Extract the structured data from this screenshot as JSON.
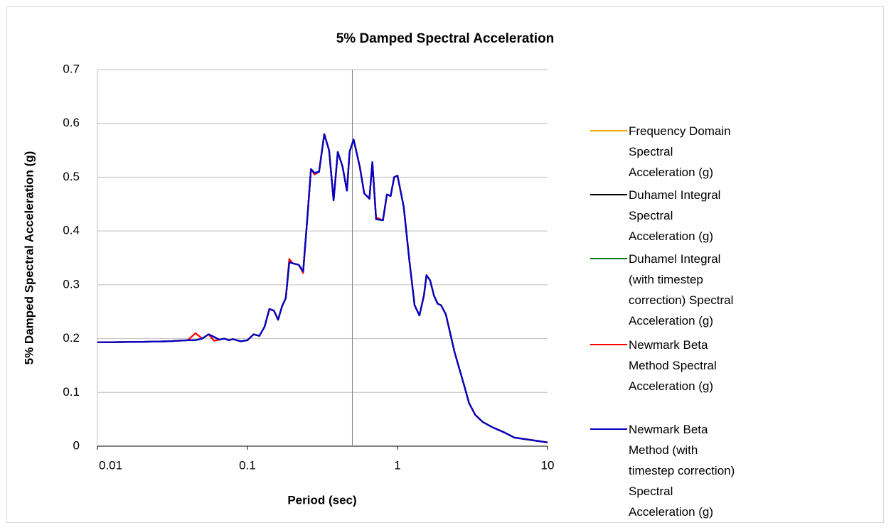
{
  "chart_data": {
    "type": "line",
    "title": "5% Damped Spectral Acceleration",
    "x_label": "Period (sec)",
    "y_label": "5% Damped Spectral Acceleration (g)",
    "xscale": "log",
    "xlim": [
      0.01,
      10
    ],
    "xticks": [
      0.01,
      0.1,
      1,
      10
    ],
    "ylim": [
      0,
      0.7
    ],
    "yticks": [
      0,
      0.1,
      0.2,
      0.3,
      0.4,
      0.5,
      0.6,
      0.7
    ],
    "grid": true,
    "vline": 0.5,
    "legend": "right",
    "x": [
      0.01,
      0.02,
      0.03,
      0.04,
      0.045,
      0.05,
      0.055,
      0.06,
      0.065,
      0.07,
      0.075,
      0.08,
      0.09,
      0.1,
      0.11,
      0.12,
      0.13,
      0.14,
      0.15,
      0.16,
      0.17,
      0.18,
      0.19,
      0.2,
      0.22,
      0.235,
      0.25,
      0.265,
      0.28,
      0.3,
      0.325,
      0.35,
      0.375,
      0.4,
      0.43,
      0.46,
      0.48,
      0.51,
      0.56,
      0.6,
      0.65,
      0.68,
      0.72,
      0.8,
      0.85,
      0.9,
      0.95,
      1,
      1.1,
      1.2,
      1.3,
      1.4,
      1.5,
      1.56,
      1.65,
      1.75,
      1.85,
      1.95,
      2.1,
      2.4,
      2.8,
      3,
      3.3,
      3.7,
      4.3,
      5.2,
      6,
      7.5,
      10
    ],
    "series": [
      {
        "name": "Frequency Domain Spectral Acceleration (g)",
        "color": "#ffa500",
        "values": [
          0.193,
          0.194,
          0.195,
          0.197,
          0.197,
          0.2,
          0.208,
          0.203,
          0.198,
          0.2,
          0.197,
          0.199,
          0.195,
          0.197,
          0.208,
          0.205,
          0.222,
          0.255,
          0.252,
          0.235,
          0.26,
          0.275,
          0.342,
          0.34,
          0.337,
          0.325,
          0.42,
          0.515,
          0.508,
          0.51,
          0.58,
          0.55,
          0.457,
          0.547,
          0.52,
          0.475,
          0.548,
          0.57,
          0.52,
          0.47,
          0.46,
          0.528,
          0.422,
          0.42,
          0.468,
          0.465,
          0.5,
          0.503,
          0.445,
          0.345,
          0.262,
          0.243,
          0.28,
          0.318,
          0.308,
          0.28,
          0.265,
          0.262,
          0.245,
          0.175,
          0.11,
          0.08,
          0.058,
          0.045,
          0.035,
          0.025,
          0.016,
          0.012,
          0.007
        ]
      },
      {
        "name": "Duhamel Integral Spectral Acceleration (g)",
        "color": "#000000",
        "values": [
          0.193,
          0.194,
          0.195,
          0.197,
          0.197,
          0.2,
          0.208,
          0.203,
          0.198,
          0.2,
          0.197,
          0.199,
          0.195,
          0.197,
          0.208,
          0.205,
          0.222,
          0.255,
          0.252,
          0.235,
          0.26,
          0.275,
          0.342,
          0.34,
          0.337,
          0.325,
          0.42,
          0.515,
          0.508,
          0.51,
          0.58,
          0.55,
          0.457,
          0.547,
          0.52,
          0.475,
          0.548,
          0.57,
          0.52,
          0.47,
          0.46,
          0.528,
          0.422,
          0.42,
          0.468,
          0.465,
          0.5,
          0.503,
          0.445,
          0.345,
          0.262,
          0.243,
          0.28,
          0.318,
          0.308,
          0.28,
          0.265,
          0.262,
          0.245,
          0.175,
          0.11,
          0.08,
          0.058,
          0.045,
          0.035,
          0.025,
          0.016,
          0.012,
          0.007
        ]
      },
      {
        "name": "Duhamel Integral (with timestep correction) Spectral Acceleration (g)",
        "color": "#008000",
        "values": [
          0.193,
          0.194,
          0.195,
          0.197,
          0.197,
          0.2,
          0.208,
          0.203,
          0.198,
          0.2,
          0.197,
          0.199,
          0.195,
          0.197,
          0.208,
          0.205,
          0.222,
          0.255,
          0.252,
          0.235,
          0.26,
          0.275,
          0.342,
          0.34,
          0.337,
          0.325,
          0.42,
          0.515,
          0.508,
          0.51,
          0.58,
          0.55,
          0.457,
          0.547,
          0.52,
          0.475,
          0.548,
          0.57,
          0.52,
          0.47,
          0.46,
          0.528,
          0.422,
          0.42,
          0.468,
          0.465,
          0.5,
          0.503,
          0.445,
          0.345,
          0.262,
          0.243,
          0.28,
          0.318,
          0.308,
          0.28,
          0.265,
          0.262,
          0.245,
          0.175,
          0.11,
          0.08,
          0.058,
          0.045,
          0.035,
          0.025,
          0.016,
          0.012,
          0.007
        ]
      },
      {
        "name": "Newmark Beta Method Spectral Acceleration (g)",
        "color": "#ff0000",
        "values": [
          0.193,
          0.194,
          0.195,
          0.197,
          0.21,
          0.2,
          0.208,
          0.196,
          0.198,
          0.2,
          0.197,
          0.199,
          0.195,
          0.197,
          0.208,
          0.205,
          0.222,
          0.255,
          0.252,
          0.235,
          0.26,
          0.275,
          0.348,
          0.34,
          0.337,
          0.322,
          0.42,
          0.515,
          0.505,
          0.51,
          0.58,
          0.55,
          0.457,
          0.547,
          0.52,
          0.475,
          0.548,
          0.57,
          0.52,
          0.47,
          0.46,
          0.528,
          0.425,
          0.42,
          0.468,
          0.465,
          0.5,
          0.503,
          0.445,
          0.345,
          0.262,
          0.243,
          0.28,
          0.318,
          0.308,
          0.28,
          0.265,
          0.262,
          0.245,
          0.175,
          0.11,
          0.08,
          0.058,
          0.045,
          0.035,
          0.025,
          0.016,
          0.012,
          0.007
        ]
      },
      {
        "name": "Newmark Beta Method (with timestep correction) Spectral Acceleration (g)",
        "color": "#0000cc",
        "values": [
          0.193,
          0.194,
          0.195,
          0.197,
          0.197,
          0.2,
          0.208,
          0.203,
          0.198,
          0.2,
          0.197,
          0.199,
          0.195,
          0.197,
          0.208,
          0.205,
          0.222,
          0.255,
          0.252,
          0.235,
          0.26,
          0.275,
          0.342,
          0.34,
          0.337,
          0.325,
          0.42,
          0.515,
          0.508,
          0.51,
          0.58,
          0.55,
          0.457,
          0.547,
          0.52,
          0.475,
          0.548,
          0.57,
          0.52,
          0.47,
          0.46,
          0.528,
          0.422,
          0.42,
          0.468,
          0.465,
          0.5,
          0.503,
          0.445,
          0.345,
          0.262,
          0.243,
          0.28,
          0.318,
          0.308,
          0.28,
          0.265,
          0.262,
          0.245,
          0.175,
          0.11,
          0.08,
          0.058,
          0.045,
          0.035,
          0.025,
          0.016,
          0.012,
          0.007
        ]
      }
    ]
  }
}
